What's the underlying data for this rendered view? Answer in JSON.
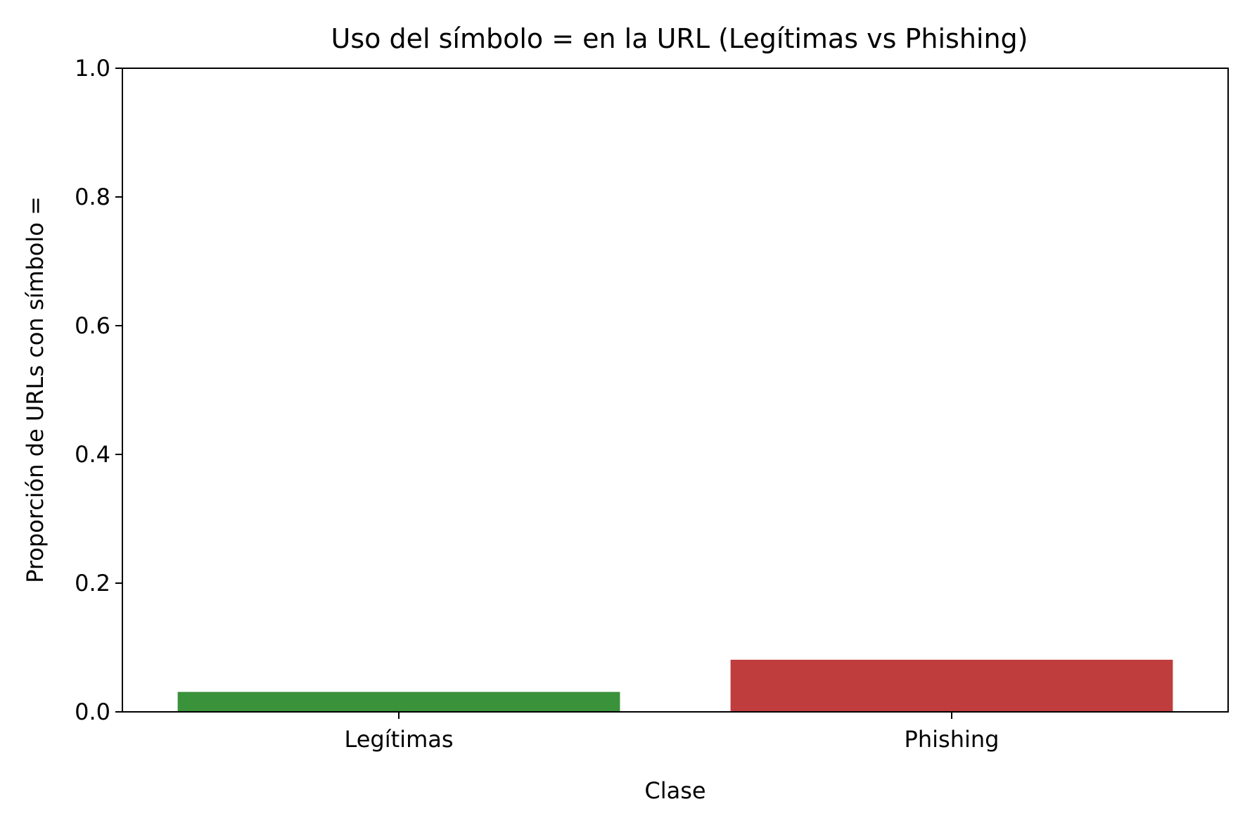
{
  "chart_data": {
    "type": "bar",
    "title": "Uso del símbolo = en la URL (Legítimas vs Phishing)",
    "xlabel": "Clase",
    "ylabel": "Proporción de URLs con símbolo =",
    "categories": [
      "Legítimas",
      "Phishing"
    ],
    "values": [
      0.031,
      0.081
    ],
    "colors": [
      "#3a923a",
      "#c03d3e"
    ],
    "ylim": [
      0,
      1.0
    ],
    "yticks": [
      "0.0",
      "0.2",
      "0.4",
      "0.6",
      "0.8",
      "1.0"
    ],
    "grid": false,
    "legend": "none"
  }
}
